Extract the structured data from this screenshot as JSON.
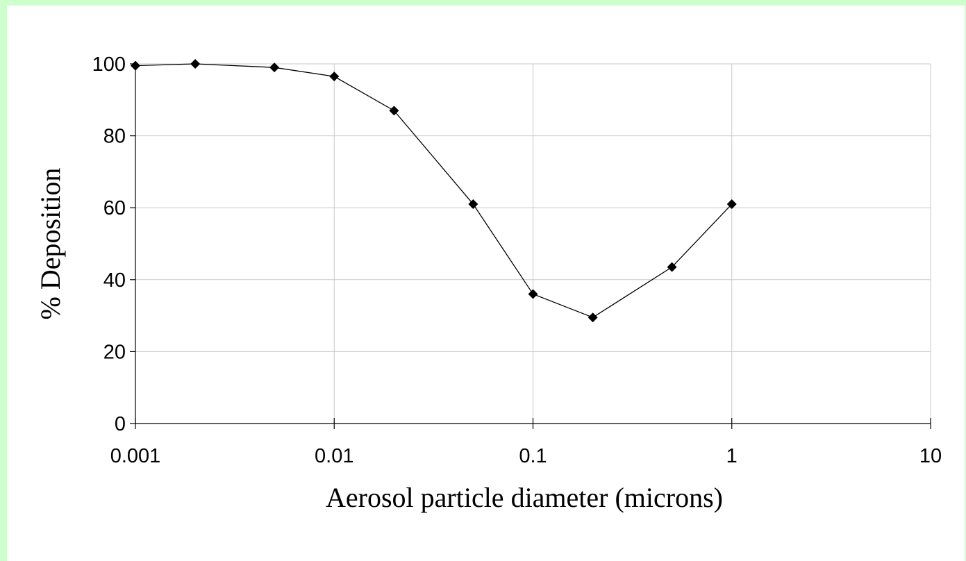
{
  "chart_data": {
    "type": "line",
    "x_label": "Aerosol particle diameter (microns)",
    "y_label": "% Deposition",
    "xscale": "log",
    "x": [
      0.001,
      0.002,
      0.005,
      0.01,
      0.02,
      0.05,
      0.1,
      0.2,
      0.5,
      1
    ],
    "series": [
      {
        "color": "#000000",
        "values": [
          99.5,
          100,
          99,
          96.5,
          87,
          61,
          36,
          29.5,
          43.5,
          61
        ]
      }
    ],
    "xlim": [
      0.001,
      10
    ],
    "xticks": [
      0.001,
      0.01,
      0.1,
      1,
      10
    ],
    "ylim": [
      0,
      100
    ],
    "yticks": [
      0,
      20,
      40,
      60,
      80,
      100
    ],
    "grid": true
  }
}
